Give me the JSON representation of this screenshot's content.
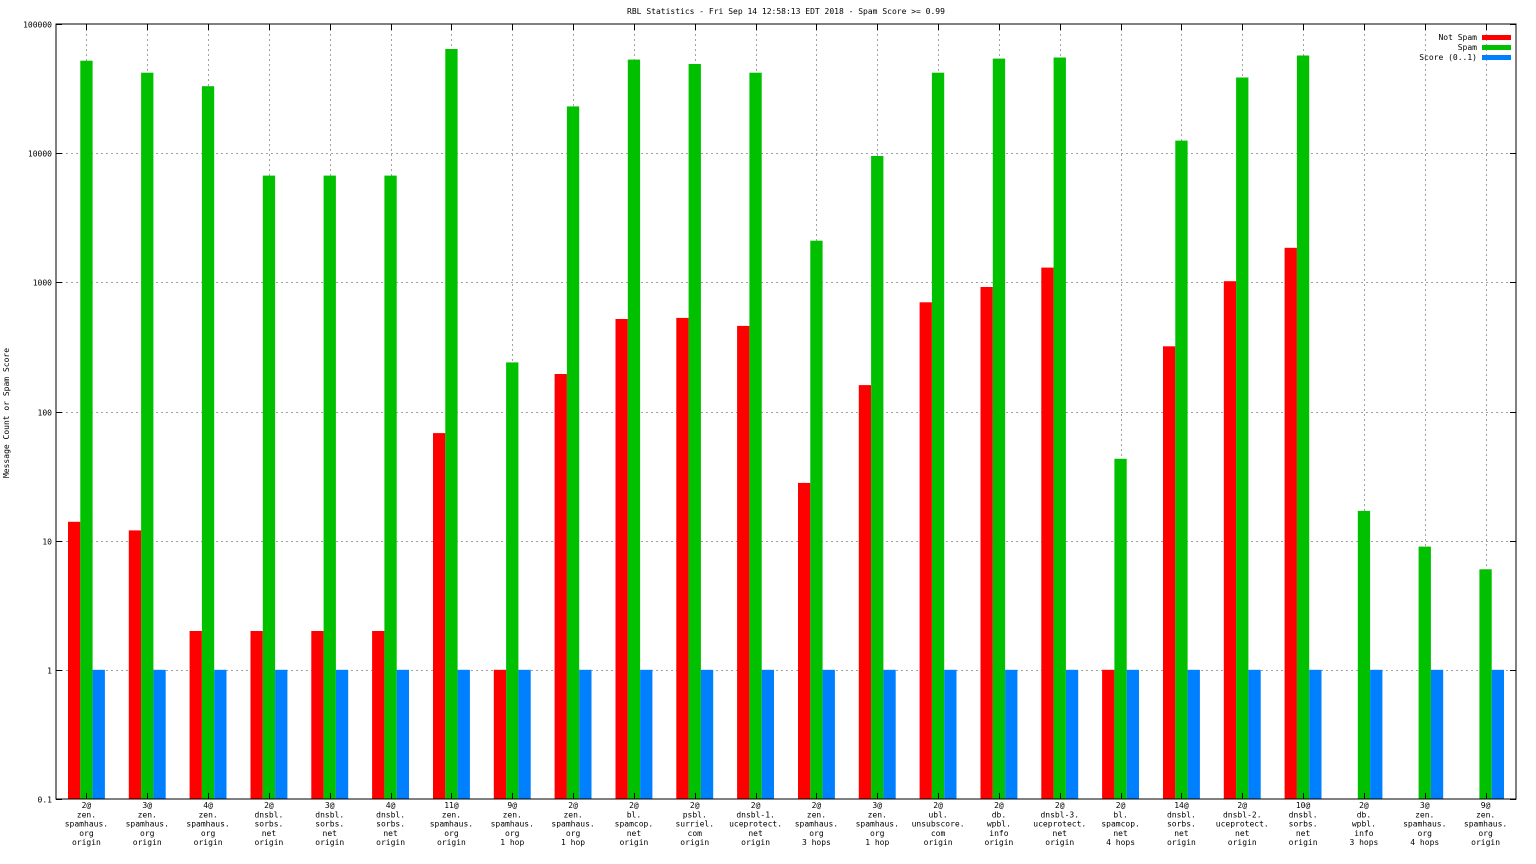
{
  "chart_data": {
    "type": "bar",
    "title": "RBL Statistics - Fri Sep 14 12:58:13 EDT 2018 - Spam Score >= 0.99",
    "ylabel": "Message Count or Spam Score",
    "xlabel": "",
    "yscale": "log",
    "ylim": [
      0.1,
      100000
    ],
    "yticks": [
      0.1,
      1,
      10,
      100,
      1000,
      10000,
      100000
    ],
    "ytick_labels": [
      "0.1",
      "1",
      "10",
      "100",
      "1000",
      "10000",
      "100000"
    ],
    "grid": true,
    "legend_position": "top-right",
    "categories": [
      [
        "2@",
        "zen.",
        "spamhaus.",
        "org",
        "origin"
      ],
      [
        "3@",
        "zen.",
        "spamhaus.",
        "org",
        "origin"
      ],
      [
        "4@",
        "zen.",
        "spamhaus.",
        "org",
        "origin"
      ],
      [
        "2@",
        "dnsbl.",
        "sorbs.",
        "net",
        "origin"
      ],
      [
        "3@",
        "dnsbl.",
        "sorbs.",
        "net",
        "origin"
      ],
      [
        "4@",
        "dnsbl.",
        "sorbs.",
        "net",
        "origin"
      ],
      [
        "11@",
        "zen.",
        "spamhaus.",
        "org",
        "origin"
      ],
      [
        "9@",
        "zen.",
        "spamhaus.",
        "org",
        "1 hop"
      ],
      [
        "2@",
        "zen.",
        "spamhaus.",
        "org",
        "1 hop"
      ],
      [
        "2@",
        "bl.",
        "spamcop.",
        "net",
        "origin"
      ],
      [
        "2@",
        "psbl.",
        "surriel.",
        "com",
        "origin"
      ],
      [
        "2@",
        "dnsbl-1.",
        "uceprotect.",
        "net",
        "origin"
      ],
      [
        "2@",
        "zen.",
        "spamhaus.",
        "org",
        "3 hops"
      ],
      [
        "3@",
        "zen.",
        "spamhaus.",
        "org",
        "1 hop"
      ],
      [
        "2@",
        "ubl.",
        "unsubscore.",
        "com",
        "origin"
      ],
      [
        "2@",
        "db.",
        "wpbl.",
        "info",
        "origin"
      ],
      [
        "2@",
        "dnsbl-3.",
        "uceprotect.",
        "net",
        "origin"
      ],
      [
        "2@",
        "bl.",
        "spamcop.",
        "net",
        "4 hops"
      ],
      [
        "14@",
        "dnsbl.",
        "sorbs.",
        "net",
        "origin"
      ],
      [
        "2@",
        "dnsbl-2.",
        "uceprotect.",
        "net",
        "origin"
      ],
      [
        "10@",
        "dnsbl.",
        "sorbs.",
        "net",
        "origin"
      ],
      [
        "2@",
        "db.",
        "wpbl.",
        "info",
        "3 hops"
      ],
      [
        "3@",
        "zen.",
        "spamhaus.",
        "org",
        "4 hops"
      ],
      [
        "9@",
        "zen.",
        "spamhaus.",
        "org",
        "origin"
      ]
    ],
    "series": [
      {
        "name": "Not Spam",
        "color": "#ff0000",
        "values": [
          14,
          12,
          2,
          2,
          2,
          2,
          68,
          1,
          195,
          520,
          530,
          460,
          28,
          160,
          700,
          920,
          1300,
          1,
          320,
          1020,
          1850,
          null,
          null,
          null
        ]
      },
      {
        "name": "Spam",
        "color": "#00c000",
        "values": [
          52000,
          42000,
          33000,
          6700,
          6700,
          6700,
          64000,
          240,
          23000,
          53000,
          49000,
          42000,
          2100,
          9500,
          42000,
          54000,
          55000,
          43,
          12500,
          38500,
          57000,
          17,
          9,
          6
        ]
      },
      {
        "name": "Score (0..1)",
        "color": "#0080ff",
        "values": [
          1,
          1,
          1,
          1,
          1,
          1,
          1,
          1,
          1,
          1,
          1,
          1,
          1,
          1,
          1,
          1,
          1,
          1,
          1,
          1,
          1,
          1,
          1,
          1
        ]
      }
    ]
  }
}
